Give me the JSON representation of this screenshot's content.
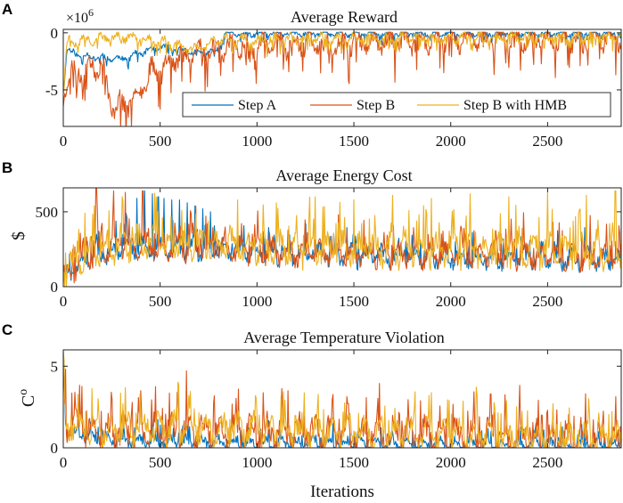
{
  "colors": {
    "step_a": "#0072BD",
    "step_b": "#D95319",
    "step_b_hmb": "#EDB120"
  },
  "legend": [
    "Step A",
    "Step B",
    "Step B with HMB"
  ],
  "xlabel": "Iterations",
  "chart_data": [
    {
      "type": "line",
      "panel_label": "A",
      "title": "Average Reward",
      "ylabel": "",
      "y_multiplier": "×10",
      "y_multiplier_exp": "6",
      "xlim": [
        0,
        2880
      ],
      "ylim": [
        -8.2,
        0.3
      ],
      "xticks": [
        0,
        500,
        1000,
        1500,
        2000,
        2500
      ],
      "yticks": [
        -5,
        0
      ],
      "series": [
        {
          "name": "Step A",
          "color": "#0072BD",
          "base": [
            [
              0,
              -4.5
            ],
            [
              20,
              -1.5
            ],
            [
              100,
              -2.0
            ],
            [
              300,
              -2.3
            ],
            [
              500,
              -1.2
            ],
            [
              700,
              -1.8
            ],
            [
              800,
              -1.5
            ],
            [
              830,
              -0.1
            ],
            [
              2880,
              0
            ]
          ],
          "noise": 0.25,
          "seed": 11,
          "spikes": []
        },
        {
          "name": "Step B",
          "color": "#D95319",
          "base": [
            [
              0,
              -5.5
            ],
            [
              20,
              -4.0
            ],
            [
              100,
              -3.0
            ],
            [
              200,
              -2.8
            ],
            [
              250,
              -6.5
            ],
            [
              350,
              -6.0
            ],
            [
              450,
              -3.5
            ],
            [
              600,
              -2.0
            ],
            [
              800,
              -1.2
            ],
            [
              1200,
              -1.0
            ],
            [
              2000,
              -0.6
            ],
            [
              2880,
              -0.4
            ]
          ],
          "noise": 0.9,
          "seed": 23,
          "spikes": []
        },
        {
          "name": "Step B with HMB",
          "color": "#EDB120",
          "base": [
            [
              0,
              -5.0
            ],
            [
              20,
              -0.8
            ],
            [
              300,
              -0.3
            ],
            [
              500,
              -0.8
            ],
            [
              700,
              -1.5
            ],
            [
              800,
              -0.6
            ],
            [
              1500,
              -0.5
            ],
            [
              2880,
              -0.3
            ]
          ],
          "noise": 0.4,
          "seed": 37,
          "spikes": []
        }
      ]
    },
    {
      "type": "line",
      "panel_label": "B",
      "title": "Average Energy Cost",
      "ylabel": "$",
      "xlim": [
        0,
        2880
      ],
      "ylim": [
        0,
        660
      ],
      "xticks": [
        0,
        500,
        1000,
        1500,
        2000,
        2500
      ],
      "yticks": [
        0,
        500
      ],
      "series": [
        {
          "name": "Step A",
          "color": "#0072BD",
          "base": [
            [
              0,
              40
            ],
            [
              100,
              180
            ],
            [
              300,
              260
            ],
            [
              800,
              250
            ],
            [
              1200,
              210
            ],
            [
              2880,
              180
            ]
          ],
          "noise": 60,
          "seed": 51,
          "spikes": [
            [
              380,
              590
            ],
            [
              420,
              640
            ],
            [
              460,
              620
            ],
            [
              490,
              600
            ],
            [
              520,
              590
            ],
            [
              560,
              580
            ],
            [
              600,
              580
            ],
            [
              640,
              560
            ],
            [
              680,
              540
            ],
            [
              720,
              520
            ],
            [
              760,
              500
            ]
          ]
        },
        {
          "name": "Step B",
          "color": "#D95319",
          "base": [
            [
              0,
              60
            ],
            [
              100,
              190
            ],
            [
              300,
              270
            ],
            [
              800,
              260
            ],
            [
              1200,
              220
            ],
            [
              2880,
              200
            ]
          ],
          "noise": 70,
          "seed": 63,
          "spikes": [
            [
              170,
              660
            ],
            [
              260,
              640
            ],
            [
              320,
              630
            ],
            [
              410,
              640
            ]
          ]
        },
        {
          "name": "Step B with HMB",
          "color": "#EDB120",
          "base": [
            [
              0,
              80
            ],
            [
              100,
              220
            ],
            [
              300,
              290
            ],
            [
              800,
              280
            ],
            [
              1200,
              250
            ],
            [
              2880,
              240
            ]
          ],
          "noise": 90,
          "seed": 79,
          "spikes": [
            [
              900,
              580
            ],
            [
              1100,
              560
            ],
            [
              1300,
              600
            ],
            [
              1500,
              580
            ],
            [
              1700,
              610
            ],
            [
              1900,
              590
            ],
            [
              2100,
              620
            ],
            [
              2300,
              600
            ],
            [
              2500,
              630
            ],
            [
              2700,
              610
            ],
            [
              2850,
              640
            ]
          ]
        }
      ]
    },
    {
      "type": "line",
      "panel_label": "C",
      "title": "Average Temperature Violation",
      "ylabel": "C",
      "ylabel_sup": "o",
      "xlim": [
        0,
        2880
      ],
      "ylim": [
        0,
        6.0
      ],
      "xticks": [
        0,
        500,
        1000,
        1500,
        2000,
        2500
      ],
      "yticks": [
        0,
        5
      ],
      "series": [
        {
          "name": "Step A",
          "color": "#0072BD",
          "base": [
            [
              0,
              5.6
            ],
            [
              15,
              1.0
            ],
            [
              200,
              0.5
            ],
            [
              800,
              0.3
            ],
            [
              2880,
              0.1
            ]
          ],
          "noise": 0.35,
          "seed": 91,
          "spikes": []
        },
        {
          "name": "Step B",
          "color": "#D95319",
          "base": [
            [
              0,
              5.8
            ],
            [
              15,
              1.2
            ],
            [
              200,
              1.0
            ],
            [
              700,
              1.0
            ],
            [
              1200,
              0.9
            ],
            [
              2000,
              0.7
            ],
            [
              2880,
              0.4
            ]
          ],
          "noise": 0.9,
          "seed": 103,
          "spikes": [
            [
              60,
              3.4
            ],
            [
              590,
              3.4
            ],
            [
              1160,
              3.5
            ],
            [
              1470,
              2.7
            ],
            [
              2470,
              2.0
            ]
          ]
        },
        {
          "name": "Step B with HMB",
          "color": "#EDB120",
          "base": [
            [
              0,
              5.5
            ],
            [
              15,
              1.3
            ],
            [
              200,
              1.1
            ],
            [
              700,
              1.2
            ],
            [
              1200,
              1.0
            ],
            [
              2000,
              0.8
            ],
            [
              2880,
              0.5
            ]
          ],
          "noise": 0.8,
          "seed": 127,
          "spikes": []
        }
      ]
    }
  ]
}
